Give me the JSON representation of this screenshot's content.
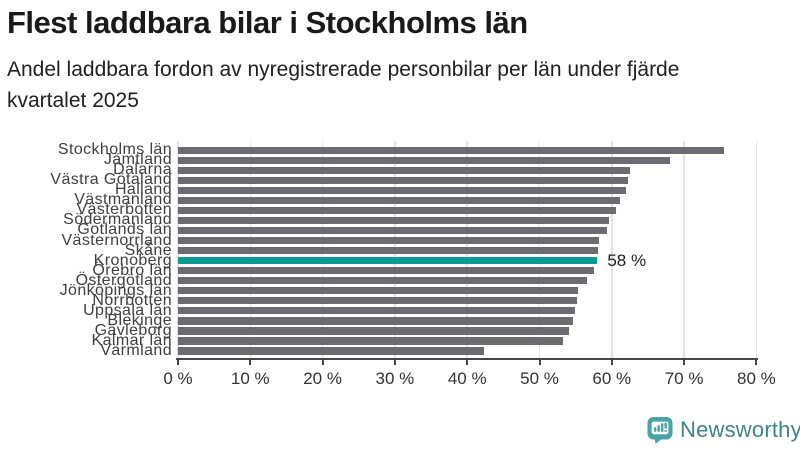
{
  "header": {
    "title": "Flest laddbara bilar i Stockholms län",
    "subtitle_lines": [
      "Andel laddbara fordon av nyregistrerade personbilar per län under fjärde",
      "kvartalet 2025"
    ]
  },
  "chart_data": {
    "type": "bar",
    "orientation": "horizontal",
    "title": "Flest laddbara bilar i Stockholms län",
    "subtitle": "Andel laddbara fordon av nyregistrerade personbilar per län under fjärde kvartalet 2025",
    "unit": "%",
    "categories": [
      "Stockholms län",
      "Jämtland",
      "Dalarna",
      "Västra Götaland",
      "Halland",
      "Västmanland",
      "Västerbotten",
      "Södermanland",
      "Gotlands län",
      "Västernorrland",
      "Skåne",
      "Kronoberg",
      "Örebro län",
      "Östergötland",
      "Jönköpings län",
      "Norrbotten",
      "Uppsala län",
      "Blekinge",
      "Gävleborg",
      "Kalmar län",
      "Värmland"
    ],
    "values": [
      75.5,
      68,
      62.5,
      62.3,
      62,
      61.2,
      60.6,
      59.6,
      59.3,
      58.2,
      58.1,
      58,
      57.6,
      56.6,
      55.3,
      55.2,
      54.9,
      54.7,
      54.1,
      53.3,
      42.3
    ],
    "highlight": {
      "index": 11,
      "category": "Kronoberg",
      "value_label": "58 %"
    },
    "x_ticks": [
      "0 %",
      "10 %",
      "20 %",
      "30 %",
      "40 %",
      "50 %",
      "60 %",
      "70 %",
      "80 %"
    ],
    "x_tick_values": [
      0,
      10,
      20,
      30,
      40,
      50,
      60,
      70,
      80
    ],
    "xlim": [
      0,
      80
    ],
    "grid": true,
    "legend": false,
    "bar_color": "#6b6b72",
    "highlight_color": "#0b9a93"
  },
  "footer": {
    "brand": "Newsworthy",
    "logo_color": "#4aa3a4",
    "brand_text_color": "#3e8589"
  }
}
